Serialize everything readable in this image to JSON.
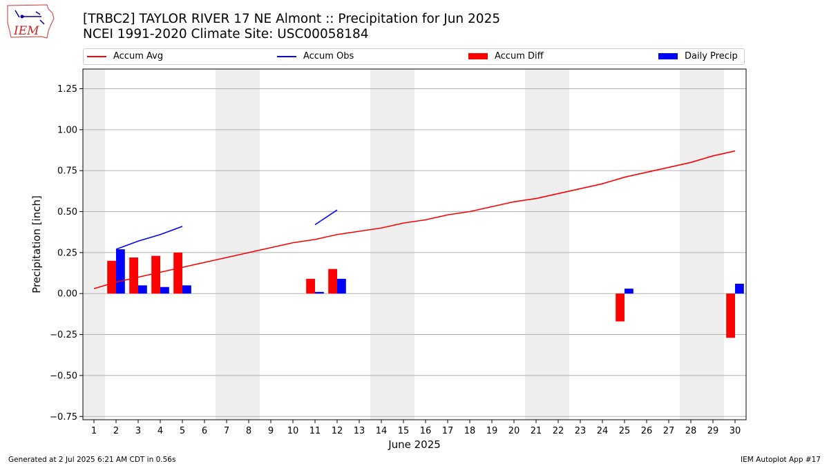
{
  "header": {
    "title_line1": "[TRBC2] TAYLOR RIVER 17 NE Almont :: Precipitation for Jun 2025",
    "title_line2": "NCEI 1991-2020 Climate Site: USC00058184"
  },
  "logo": {
    "text": "IEM"
  },
  "footer": {
    "generated": "Generated at 2 Jul 2025 6:21 AM CDT in 0.56s",
    "app": "IEM Autoplot App #17"
  },
  "colors": {
    "avg": "#ff0000",
    "obs": "#0000ff",
    "diff": "#ff0000",
    "daily": "#0000ff",
    "weekend": "#eeeeee",
    "grid": "#b0b0b0"
  },
  "chart_data": {
    "type": "bar",
    "xlabel": "June 2025",
    "ylabel": "Precipitation [inch]",
    "x": [
      1,
      2,
      3,
      4,
      5,
      6,
      7,
      8,
      9,
      10,
      11,
      12,
      13,
      14,
      15,
      16,
      17,
      18,
      19,
      20,
      21,
      22,
      23,
      24,
      25,
      26,
      27,
      28,
      29,
      30
    ],
    "xlim": [
      0.5,
      30.5
    ],
    "ylim": [
      -0.77,
      1.37
    ],
    "yticks": [
      -0.75,
      -0.5,
      -0.25,
      0.0,
      0.25,
      0.5,
      0.75,
      1.0,
      1.25
    ],
    "ytick_labels": [
      "−0.75",
      "−0.50",
      "−0.25",
      "0.00",
      "0.25",
      "0.50",
      "0.75",
      "1.00",
      "1.25"
    ],
    "grid": true,
    "weekend_spans": [
      [
        0.5,
        1.5
      ],
      [
        6.5,
        8.5
      ],
      [
        13.5,
        15.5
      ],
      [
        20.5,
        22.5
      ],
      [
        27.5,
        29.5
      ]
    ],
    "legend_position": "top",
    "series": [
      {
        "name": "Accum Avg",
        "kind": "line",
        "values": [
          0.03,
          0.07,
          0.1,
          0.13,
          0.16,
          0.19,
          0.22,
          0.25,
          0.28,
          0.31,
          0.33,
          0.36,
          0.38,
          0.4,
          0.43,
          0.45,
          0.48,
          0.5,
          0.53,
          0.56,
          0.58,
          0.61,
          0.64,
          0.67,
          0.71,
          0.74,
          0.77,
          0.8,
          0.84,
          0.87
        ]
      },
      {
        "name": "Accum Obs",
        "kind": "line",
        "values": [
          null,
          0.27,
          0.32,
          0.36,
          0.41,
          null,
          null,
          null,
          null,
          null,
          0.42,
          0.51,
          null,
          null,
          null,
          null,
          null,
          null,
          null,
          null,
          null,
          null,
          null,
          null,
          null,
          null,
          null,
          null,
          null,
          null
        ]
      },
      {
        "name": "Accum Diff",
        "kind": "bar",
        "values": [
          null,
          0.2,
          0.22,
          0.23,
          0.25,
          null,
          null,
          null,
          null,
          null,
          0.09,
          0.15,
          null,
          null,
          null,
          null,
          null,
          null,
          null,
          null,
          null,
          null,
          null,
          null,
          -0.17,
          null,
          null,
          null,
          null,
          -0.27
        ]
      },
      {
        "name": "Daily Precip",
        "kind": "bar",
        "values": [
          null,
          0.27,
          0.05,
          0.04,
          0.05,
          null,
          null,
          null,
          null,
          null,
          0.01,
          0.09,
          null,
          null,
          null,
          null,
          null,
          null,
          null,
          null,
          null,
          null,
          null,
          null,
          0.03,
          null,
          null,
          null,
          null,
          0.06
        ]
      }
    ]
  }
}
